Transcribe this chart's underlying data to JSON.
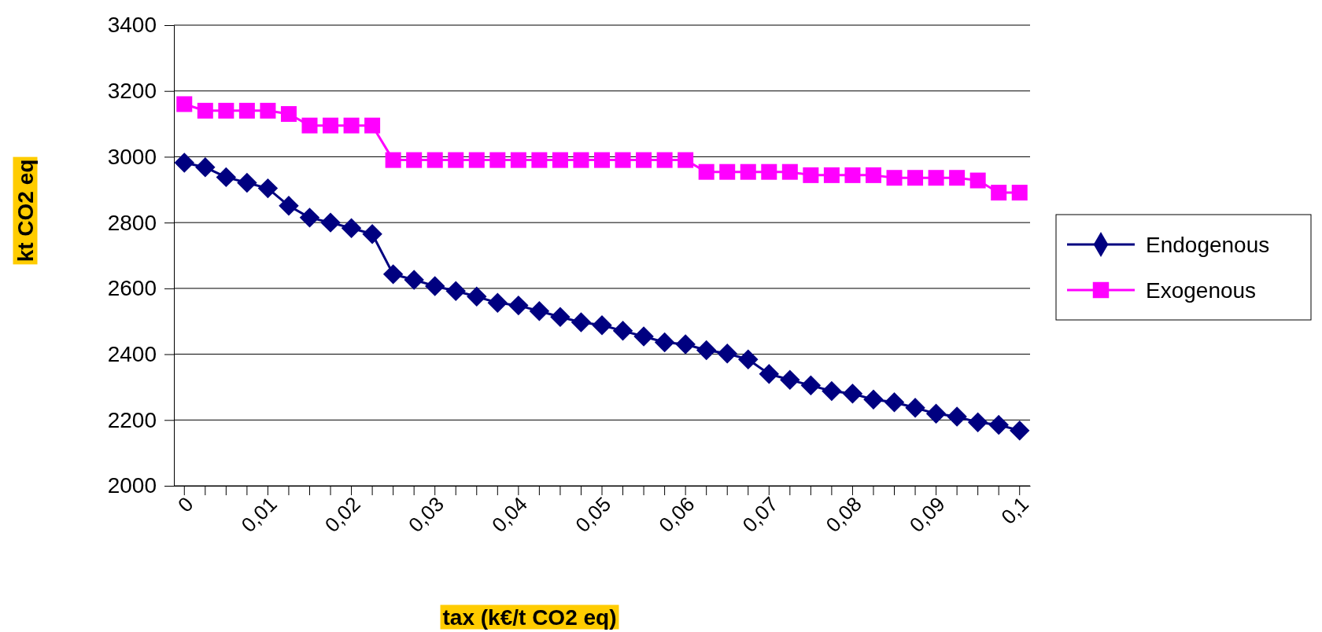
{
  "chart_data": {
    "type": "line",
    "xlabel": "tax (k€/t CO2 eq)",
    "ylabel": "kt CO2 eq",
    "categories": [
      "0",
      null,
      null,
      null,
      "0,01",
      null,
      null,
      null,
      "0,02",
      null,
      null,
      null,
      "0,03",
      null,
      null,
      null,
      "0,04",
      null,
      null,
      null,
      "0,05",
      null,
      null,
      null,
      "0,06",
      null,
      null,
      null,
      "0,07",
      null,
      null,
      null,
      "0,08",
      null,
      null,
      null,
      "0,09",
      null,
      null,
      null,
      "0,1"
    ],
    "series": [
      {
        "name": "Endogenous",
        "color": "#000080",
        "marker": "diamond",
        "values": [
          2982,
          2968,
          2938,
          2921,
          2904,
          2851,
          2815,
          2800,
          2783,
          2765,
          2643,
          2626,
          2607,
          2592,
          2575,
          2556,
          2548,
          2531,
          2513,
          2497,
          2488,
          2471,
          2454,
          2436,
          2430,
          2412,
          2402,
          2384,
          2340,
          2322,
          2305,
          2288,
          2280,
          2262,
          2254,
          2237,
          2219,
          2210,
          2193,
          2185,
          2168
        ]
      },
      {
        "name": "Exogenous",
        "color": "#ff00ff",
        "marker": "square",
        "values": [
          3160,
          3140,
          3140,
          3140,
          3140,
          3130,
          3095,
          3095,
          3095,
          3095,
          2990,
          2990,
          2990,
          2990,
          2990,
          2990,
          2990,
          2990,
          2990,
          2990,
          2990,
          2990,
          2990,
          2990,
          2990,
          2954,
          2954,
          2954,
          2954,
          2954,
          2944,
          2944,
          2944,
          2944,
          2936,
          2936,
          2936,
          2936,
          2928,
          2891,
          2891
        ]
      }
    ],
    "ylim": [
      2000,
      3400
    ],
    "yticks": [
      2000,
      2200,
      2400,
      2600,
      2800,
      3000,
      3200,
      3400
    ],
    "grid": "y",
    "legend": "right"
  }
}
